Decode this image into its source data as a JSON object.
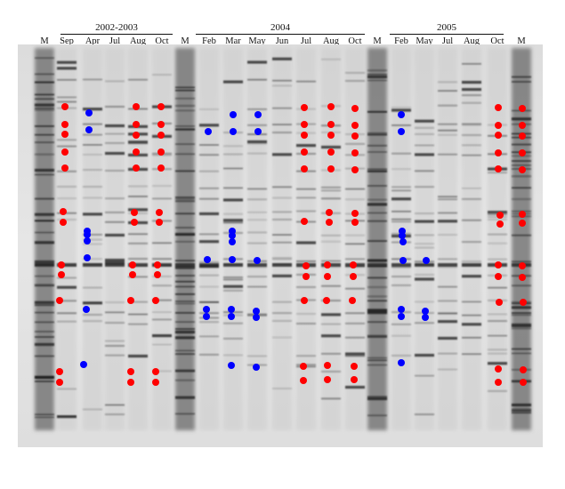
{
  "years": [
    {
      "label": "2002-2003"
    },
    {
      "label": "2004"
    },
    {
      "label": "2005"
    }
  ],
  "lanes": [
    "M",
    "Sep",
    "Apr",
    "Jul",
    "Aug",
    "Oct",
    "M",
    "Feb",
    "Mar",
    "May",
    "Jun",
    "Jul",
    "Aug",
    "Oct",
    "M",
    "Feb",
    "May",
    "Jul",
    "Aug",
    "Oct",
    "M"
  ],
  "colors": {
    "gel_background": "#e3e3e3",
    "band": "#1e1e1e",
    "red_marker": "#ff0000",
    "blue_marker": "#0000ff"
  },
  "marker_legend": {
    "red": "red-dot",
    "blue": "blue-dot"
  }
}
